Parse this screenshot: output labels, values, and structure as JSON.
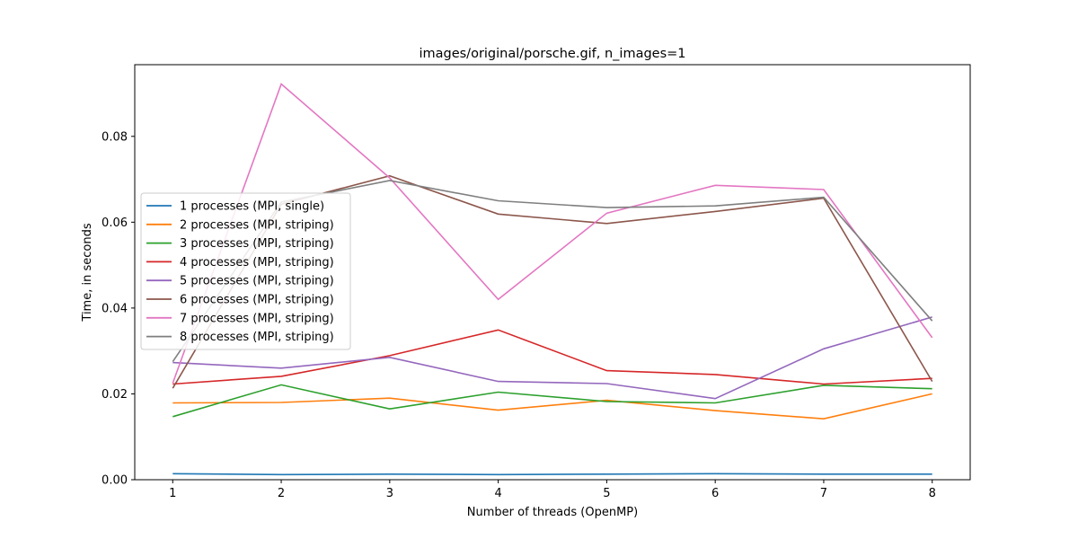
{
  "chart_data": {
    "type": "line",
    "title": "images/original/porsche.gif, n_images=1",
    "xlabel": "Number of threads (OpenMP)",
    "ylabel": "Time, in seconds",
    "x": [
      1,
      2,
      3,
      4,
      5,
      6,
      7,
      8
    ],
    "xticks": [
      "1",
      "2",
      "3",
      "4",
      "5",
      "6",
      "7",
      "8"
    ],
    "xlim": [
      0.65,
      8.35
    ],
    "ylim": [
      0.0,
      0.0967
    ],
    "yticks": [
      "0.00",
      "0.02",
      "0.04",
      "0.06",
      "0.08"
    ],
    "ytick_values": [
      0.0,
      0.02,
      0.04,
      0.06,
      0.08
    ],
    "grid": false,
    "legend_position": "center-left",
    "series": [
      {
        "name": "1 processes (MPI, single)",
        "color": "#1f77b4",
        "values": [
          0.0014,
          0.0012,
          0.0013,
          0.0012,
          0.0013,
          0.0014,
          0.0013,
          0.0013
        ]
      },
      {
        "name": "2 processes (MPI, striping)",
        "color": "#ff7f0e",
        "values": [
          0.0179,
          0.018,
          0.019,
          0.0162,
          0.0185,
          0.0161,
          0.0142,
          0.02
        ]
      },
      {
        "name": "3 processes (MPI, striping)",
        "color": "#2ca02c",
        "values": [
          0.0147,
          0.0221,
          0.0165,
          0.0204,
          0.0182,
          0.0179,
          0.022,
          0.0212
        ]
      },
      {
        "name": "4 processes (MPI, striping)",
        "color": "#d62728",
        "values": [
          0.0223,
          0.0241,
          0.0289,
          0.0349,
          0.0254,
          0.0245,
          0.0223,
          0.0236
        ]
      },
      {
        "name": "5 processes (MPI, striping)",
        "color": "#9467bd",
        "values": [
          0.0273,
          0.026,
          0.0285,
          0.0229,
          0.0224,
          0.0189,
          0.0305,
          0.0379
        ]
      },
      {
        "name": "6 processes (MPI, striping)",
        "color": "#8c564b",
        "values": [
          0.0213,
          0.0642,
          0.0708,
          0.0619,
          0.0597,
          0.0625,
          0.0656,
          0.0229
        ]
      },
      {
        "name": "7 processes (MPI, striping)",
        "color": "#e377c2",
        "values": [
          0.0225,
          0.0922,
          0.0703,
          0.042,
          0.0621,
          0.0686,
          0.0676,
          0.0331
        ]
      },
      {
        "name": "8 processes (MPI, striping)",
        "color": "#7f7f7f",
        "values": [
          0.0275,
          0.0647,
          0.0697,
          0.065,
          0.0634,
          0.0638,
          0.0658,
          0.037
        ]
      }
    ]
  }
}
